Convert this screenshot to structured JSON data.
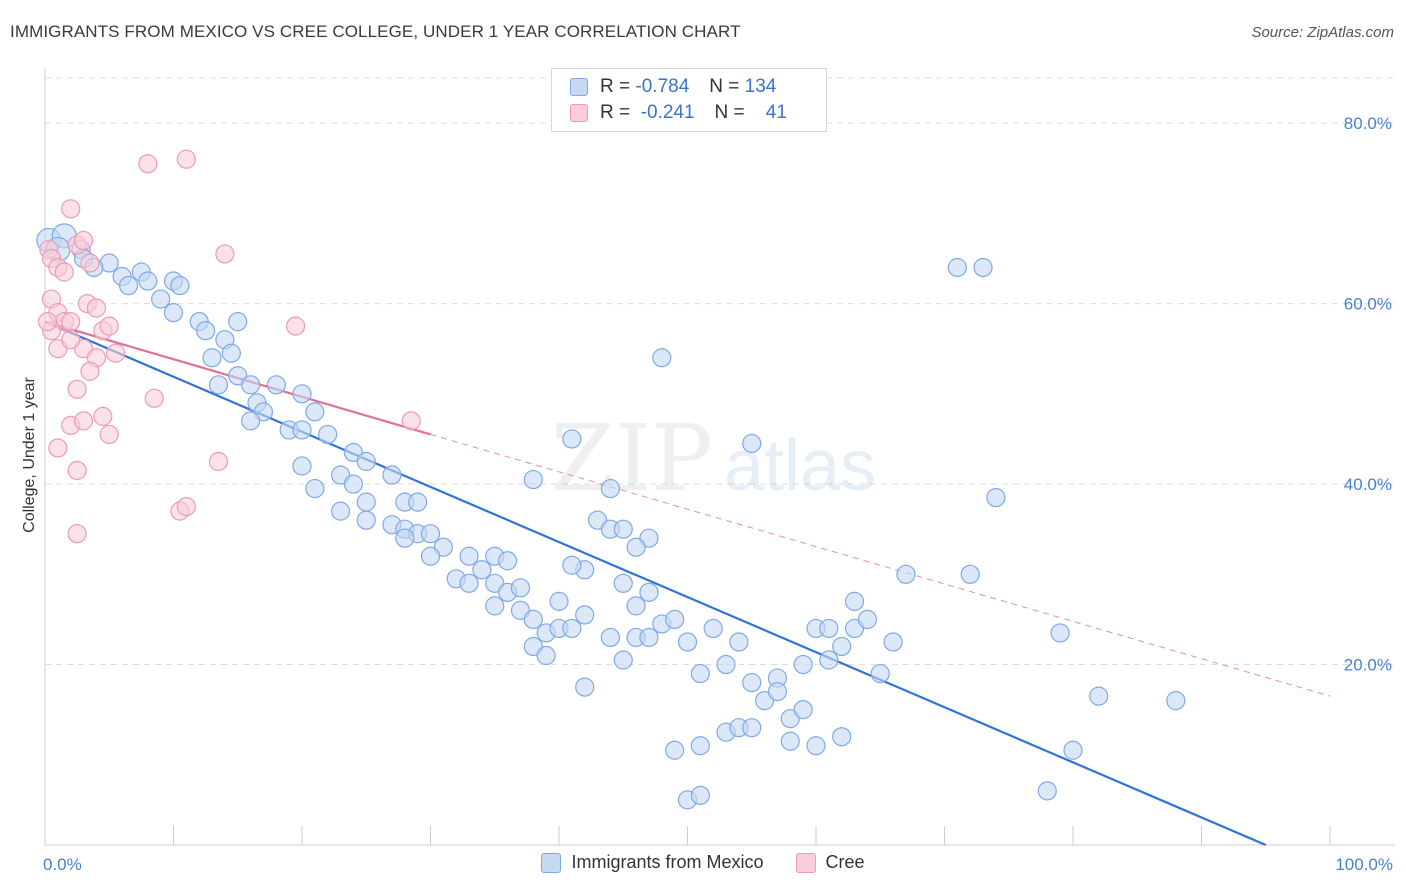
{
  "title": "IMMIGRANTS FROM MEXICO VS CREE COLLEGE, UNDER 1 YEAR CORRELATION CHART",
  "source": "Source: ZipAtlas.com",
  "watermark": {
    "zip": "ZIP",
    "atlas": "atlas"
  },
  "legend": {
    "rows": [
      {
        "r_label": "R =",
        "r_value": "-0.784",
        "n_label": "N =",
        "n_value": "134",
        "color": "#7fa9e6",
        "fill": "#c5d9f3"
      },
      {
        "r_label": "R =",
        "r_value": "-0.241",
        "n_label": "N =",
        "n_value": "41",
        "color": "#ef9ab6",
        "fill": "#f9cdd9"
      }
    ]
  },
  "bottom_legend": [
    {
      "label": "Immigrants from Mexico",
      "color": "#7fa9e6",
      "fill": "#c5d9f3"
    },
    {
      "label": "Cree",
      "color": "#ef9ab6",
      "fill": "#f9cdd9"
    }
  ],
  "chart_data": {
    "type": "scatter",
    "title": "IMMIGRANTS FROM MEXICO VS CREE COLLEGE, UNDER 1 YEAR CORRELATION CHART",
    "xlabel": "",
    "ylabel": "College, Under 1 year",
    "xlim": [
      0,
      100
    ],
    "ylim": [
      0,
      85
    ],
    "x_tick_labels": [
      "0.0%",
      "100.0%"
    ],
    "y_ticks": [
      20,
      40,
      60,
      80
    ],
    "y_tick_labels": [
      "20.0%",
      "40.0%",
      "60.0%",
      "80.0%"
    ],
    "grid": "horizontal dashed",
    "legend_position": "top-center",
    "series": [
      {
        "name": "Immigrants from Mexico",
        "color": "#7fa9e6",
        "fill": "#c5d9f3",
        "trend": {
          "x": [
            0,
            95
          ],
          "y": [
            58,
            0
          ],
          "style": "solid",
          "color": "#2f73d6"
        },
        "points": [
          [
            0.3,
            67
          ],
          [
            1.5,
            67.5
          ],
          [
            1.0,
            66
          ],
          [
            2.8,
            66
          ],
          [
            3,
            65
          ],
          [
            5,
            64.5
          ],
          [
            3.8,
            64
          ],
          [
            6,
            63
          ],
          [
            7.5,
            63.5
          ],
          [
            8,
            62.5
          ],
          [
            10,
            62.5
          ],
          [
            10.5,
            62
          ],
          [
            6.5,
            62
          ],
          [
            9,
            60.5
          ],
          [
            10,
            59
          ],
          [
            12,
            58
          ],
          [
            12.5,
            57
          ],
          [
            15,
            58
          ],
          [
            14,
            56
          ],
          [
            14.5,
            54.5
          ],
          [
            13,
            54
          ],
          [
            15,
            52
          ],
          [
            16,
            51
          ],
          [
            13.5,
            51
          ],
          [
            18,
            51
          ],
          [
            16.5,
            49
          ],
          [
            20,
            50
          ],
          [
            17,
            48
          ],
          [
            21,
            48
          ],
          [
            16,
            47
          ],
          [
            19,
            46
          ],
          [
            20,
            46
          ],
          [
            22,
            45.5
          ],
          [
            24,
            43.5
          ],
          [
            25,
            42.5
          ],
          [
            20,
            42
          ],
          [
            23,
            41
          ],
          [
            21,
            39.5
          ],
          [
            27,
            41
          ],
          [
            24,
            40
          ],
          [
            25,
            38
          ],
          [
            28,
            38
          ],
          [
            29,
            38
          ],
          [
            23,
            37
          ],
          [
            25,
            36
          ],
          [
            27,
            35.5
          ],
          [
            28,
            35
          ],
          [
            29,
            34.5
          ],
          [
            30,
            34.5
          ],
          [
            28,
            34
          ],
          [
            31,
            33
          ],
          [
            30,
            32
          ],
          [
            33,
            32
          ],
          [
            35,
            32
          ],
          [
            34,
            30.5
          ],
          [
            32,
            29.5
          ],
          [
            33,
            29
          ],
          [
            35,
            29
          ],
          [
            36,
            28
          ],
          [
            37,
            28.5
          ],
          [
            35,
            26.5
          ],
          [
            37,
            26
          ],
          [
            38,
            25
          ],
          [
            39,
            23.5
          ],
          [
            38,
            22
          ],
          [
            40,
            24
          ],
          [
            41,
            24
          ],
          [
            42,
            25.5
          ],
          [
            44,
            23
          ],
          [
            46,
            23
          ],
          [
            47,
            23
          ],
          [
            45,
            20.5
          ],
          [
            42,
            17.5
          ],
          [
            48,
            24.5
          ],
          [
            49,
            25
          ],
          [
            50,
            22.5
          ],
          [
            51,
            19
          ],
          [
            52,
            24
          ],
          [
            54,
            22.5
          ],
          [
            55,
            18
          ],
          [
            56,
            16
          ],
          [
            57,
            18.5
          ],
          [
            57,
            17
          ],
          [
            58,
            14
          ],
          [
            60,
            24
          ],
          [
            61,
            20.5
          ],
          [
            61,
            24
          ],
          [
            62,
            22
          ],
          [
            63,
            27
          ],
          [
            63,
            24
          ],
          [
            65,
            19
          ],
          [
            66,
            22.5
          ],
          [
            67,
            30
          ],
          [
            64,
            25
          ],
          [
            42,
            30.5
          ],
          [
            43,
            36
          ],
          [
            41,
            45
          ],
          [
            44,
            35
          ],
          [
            45,
            35
          ],
          [
            47,
            34
          ],
          [
            48,
            54
          ],
          [
            38,
            40.5
          ],
          [
            44,
            39.5
          ],
          [
            49,
            10.5
          ],
          [
            51,
            11
          ],
          [
            53,
            12.5
          ],
          [
            54,
            13
          ],
          [
            55,
            13
          ],
          [
            58,
            11.5
          ],
          [
            62,
            12
          ],
          [
            50,
            5
          ],
          [
            51,
            5.5
          ],
          [
            59,
            15
          ],
          [
            60,
            11
          ],
          [
            71,
            64
          ],
          [
            73,
            64
          ],
          [
            74,
            38.5
          ],
          [
            79,
            23.5
          ],
          [
            80,
            10.5
          ],
          [
            82,
            16.5
          ],
          [
            88,
            16
          ],
          [
            55,
            44.5
          ],
          [
            78,
            6
          ],
          [
            72,
            30
          ],
          [
            41,
            31
          ],
          [
            36,
            31.5
          ],
          [
            59,
            20
          ],
          [
            46,
            26.5
          ],
          [
            47,
            28
          ],
          [
            53,
            20
          ],
          [
            45,
            29
          ],
          [
            46,
            33
          ],
          [
            40,
            27
          ],
          [
            39,
            21
          ]
        ]
      },
      {
        "name": "Cree",
        "color": "#ef9ab6",
        "fill": "#f9cdd9",
        "trend": {
          "x": [
            0,
            30
          ],
          "y": [
            58,
            45.5
          ],
          "style": "solid",
          "color": "#e0709a",
          "extension": {
            "x": [
              30,
              100
            ],
            "y": [
              45.5,
              16.5
            ],
            "style": "dashed"
          }
        },
        "points": [
          [
            0.3,
            66
          ],
          [
            0.5,
            65
          ],
          [
            1,
            64
          ],
          [
            2.5,
            66.5
          ],
          [
            3,
            67
          ],
          [
            1.5,
            63.5
          ],
          [
            3.5,
            64.5
          ],
          [
            8,
            75.5
          ],
          [
            11,
            76
          ],
          [
            2,
            70.5
          ],
          [
            14,
            65.5
          ],
          [
            0.5,
            60.5
          ],
          [
            1,
            59
          ],
          [
            3.3,
            60
          ],
          [
            4,
            59.5
          ],
          [
            1.5,
            58
          ],
          [
            2,
            58
          ],
          [
            0.5,
            57
          ],
          [
            4.5,
            57
          ],
          [
            5,
            57.5
          ],
          [
            3,
            55
          ],
          [
            4,
            54
          ],
          [
            5.5,
            54.5
          ],
          [
            3.5,
            52.5
          ],
          [
            2.5,
            50.5
          ],
          [
            8.5,
            49.5
          ],
          [
            4.5,
            47.5
          ],
          [
            2,
            46.5
          ],
          [
            3,
            47
          ],
          [
            5,
            45.5
          ],
          [
            1,
            44
          ],
          [
            2.5,
            41.5
          ],
          [
            13.5,
            42.5
          ],
          [
            10.5,
            37
          ],
          [
            11,
            37.5
          ],
          [
            2.5,
            34.5
          ],
          [
            19.5,
            57.5
          ],
          [
            28.5,
            47
          ],
          [
            1,
            55
          ],
          [
            0.2,
            58
          ],
          [
            2,
            56
          ]
        ]
      }
    ]
  }
}
